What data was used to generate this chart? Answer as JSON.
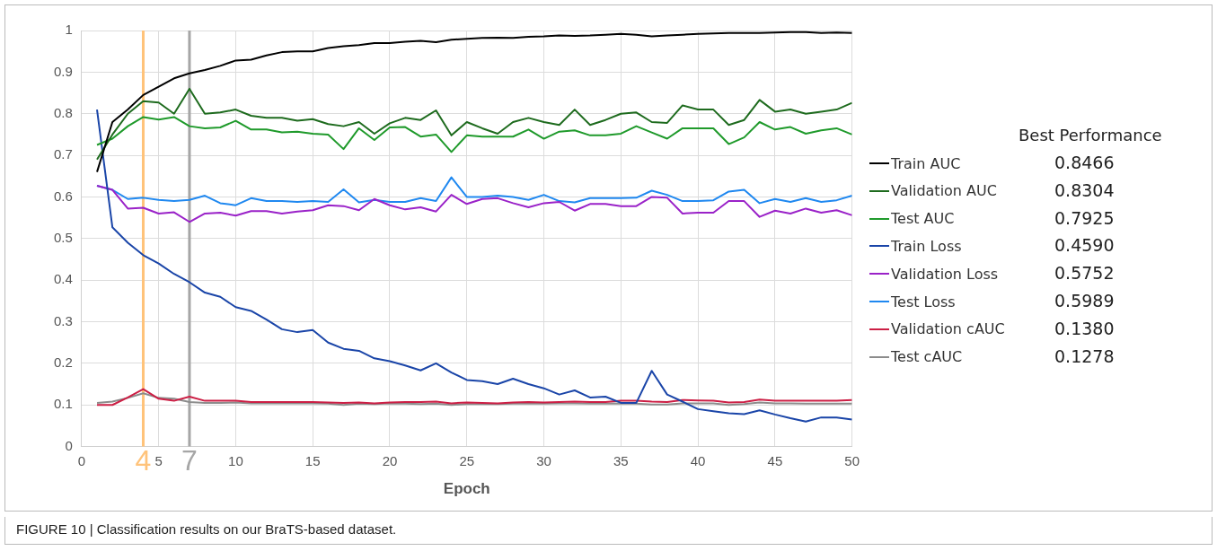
{
  "chart_data": {
    "type": "line",
    "xlabel": "Epoch",
    "legend_title": "Best Performance",
    "legend": "right",
    "grid": true,
    "marker": "none",
    "line_style": "solid",
    "x": [
      1,
      2,
      3,
      4,
      5,
      6,
      7,
      8,
      9,
      10,
      11,
      12,
      13,
      14,
      15,
      16,
      17,
      18,
      19,
      20,
      21,
      22,
      23,
      24,
      25,
      26,
      27,
      28,
      29,
      30,
      31,
      32,
      33,
      34,
      35,
      36,
      37,
      38,
      39,
      40,
      41,
      42,
      43,
      44,
      45,
      46,
      47,
      48,
      49,
      50
    ],
    "xlim": [
      0,
      50
    ],
    "xticks": [
      0,
      5,
      10,
      15,
      20,
      25,
      30,
      35,
      40,
      45,
      50
    ],
    "ylim": [
      0,
      1
    ],
    "yticks": [
      0,
      0.1,
      0.2,
      0.3,
      0.4,
      0.5,
      0.6,
      0.7,
      0.8,
      0.9,
      1
    ],
    "series": [
      {
        "name": "Train AUC",
        "color": "#000000",
        "values": [
          0.66,
          0.78,
          0.81,
          0.845,
          0.865,
          0.885,
          0.897,
          0.905,
          0.915,
          0.928,
          0.93,
          0.94,
          0.948,
          0.95,
          0.95,
          0.958,
          0.962,
          0.965,
          0.97,
          0.97,
          0.973,
          0.975,
          0.972,
          0.978,
          0.98,
          0.982,
          0.983,
          0.982,
          0.985,
          0.986,
          0.988,
          0.987,
          0.988,
          0.99,
          0.992,
          0.99,
          0.986,
          0.988,
          0.99,
          0.992,
          0.993,
          0.994,
          0.994,
          0.994,
          0.995,
          0.996,
          0.996,
          0.994,
          0.995,
          0.994
        ]
      },
      {
        "name": "Validation AUC",
        "color": "#1e6b1e",
        "values": [
          0.69,
          0.75,
          0.8,
          0.83,
          0.827,
          0.8,
          0.86,
          0.8,
          0.803,
          0.81,
          0.795,
          0.79,
          0.79,
          0.783,
          0.787,
          0.775,
          0.77,
          0.78,
          0.752,
          0.777,
          0.79,
          0.785,
          0.808,
          0.748,
          0.78,
          0.765,
          0.752,
          0.78,
          0.79,
          0.78,
          0.773,
          0.81,
          0.773,
          0.785,
          0.8,
          0.803,
          0.78,
          0.778,
          0.82,
          0.81,
          0.81,
          0.773,
          0.785,
          0.833,
          0.805,
          0.81,
          0.8,
          0.805,
          0.81,
          0.826
        ]
      },
      {
        "name": "Test AUC",
        "color": "#1f9a2b",
        "values": [
          0.725,
          0.74,
          0.77,
          0.792,
          0.786,
          0.792,
          0.77,
          0.765,
          0.767,
          0.783,
          0.762,
          0.762,
          0.755,
          0.757,
          0.752,
          0.75,
          0.715,
          0.765,
          0.737,
          0.767,
          0.768,
          0.745,
          0.75,
          0.708,
          0.748,
          0.745,
          0.745,
          0.745,
          0.762,
          0.74,
          0.757,
          0.76,
          0.748,
          0.748,
          0.752,
          0.77,
          0.755,
          0.74,
          0.765,
          0.765,
          0.765,
          0.727,
          0.743,
          0.78,
          0.762,
          0.768,
          0.752,
          0.76,
          0.765,
          0.75
        ]
      },
      {
        "name": "Train Loss",
        "color": "#1a45a8",
        "values": [
          0.81,
          0.527,
          0.49,
          0.46,
          0.44,
          0.415,
          0.395,
          0.37,
          0.36,
          0.335,
          0.326,
          0.305,
          0.282,
          0.275,
          0.28,
          0.25,
          0.235,
          0.23,
          0.212,
          0.205,
          0.195,
          0.183,
          0.2,
          0.178,
          0.16,
          0.157,
          0.15,
          0.163,
          0.15,
          0.14,
          0.125,
          0.135,
          0.118,
          0.12,
          0.105,
          0.105,
          0.182,
          0.125,
          0.108,
          0.09,
          0.085,
          0.08,
          0.078,
          0.087,
          0.077,
          0.068,
          0.06,
          0.07,
          0.07,
          0.065
        ]
      },
      {
        "name": "Validation Loss",
        "color": "#9a22c8",
        "values": [
          0.627,
          0.617,
          0.572,
          0.574,
          0.56,
          0.563,
          0.54,
          0.56,
          0.562,
          0.555,
          0.566,
          0.566,
          0.56,
          0.565,
          0.568,
          0.58,
          0.578,
          0.568,
          0.595,
          0.58,
          0.57,
          0.575,
          0.565,
          0.605,
          0.583,
          0.595,
          0.597,
          0.585,
          0.575,
          0.585,
          0.588,
          0.567,
          0.583,
          0.583,
          0.578,
          0.578,
          0.6,
          0.598,
          0.56,
          0.562,
          0.562,
          0.59,
          0.59,
          0.552,
          0.567,
          0.56,
          0.572,
          0.562,
          0.568,
          0.556
        ]
      },
      {
        "name": "Test Loss",
        "color": "#1f88f0",
        "values": [
          0.627,
          0.617,
          0.595,
          0.598,
          0.593,
          0.59,
          0.593,
          0.603,
          0.585,
          0.58,
          0.597,
          0.59,
          0.59,
          0.588,
          0.59,
          0.588,
          0.618,
          0.587,
          0.593,
          0.588,
          0.588,
          0.597,
          0.59,
          0.647,
          0.6,
          0.6,
          0.603,
          0.6,
          0.593,
          0.605,
          0.59,
          0.587,
          0.597,
          0.597,
          0.597,
          0.598,
          0.615,
          0.605,
          0.59,
          0.59,
          0.592,
          0.613,
          0.617,
          0.585,
          0.595,
          0.588,
          0.597,
          0.588,
          0.592,
          0.603
        ]
      },
      {
        "name": "Validation cAUC",
        "color": "#cc1f45",
        "values": [
          0.1,
          0.1,
          0.118,
          0.138,
          0.115,
          0.11,
          0.12,
          0.11,
          0.11,
          0.11,
          0.107,
          0.107,
          0.107,
          0.107,
          0.107,
          0.106,
          0.105,
          0.106,
          0.104,
          0.106,
          0.107,
          0.107,
          0.108,
          0.104,
          0.106,
          0.105,
          0.104,
          0.106,
          0.107,
          0.106,
          0.107,
          0.108,
          0.107,
          0.107,
          0.11,
          0.11,
          0.108,
          0.107,
          0.112,
          0.111,
          0.11,
          0.106,
          0.107,
          0.113,
          0.11,
          0.11,
          0.11,
          0.11,
          0.11,
          0.112
        ]
      },
      {
        "name": "Test cAUC",
        "color": "#8c8c8c",
        "values": [
          0.105,
          0.108,
          0.117,
          0.128,
          0.117,
          0.115,
          0.107,
          0.105,
          0.105,
          0.106,
          0.104,
          0.104,
          0.104,
          0.104,
          0.104,
          0.103,
          0.1,
          0.103,
          0.102,
          0.104,
          0.103,
          0.102,
          0.103,
          0.1,
          0.102,
          0.102,
          0.102,
          0.103,
          0.103,
          0.103,
          0.104,
          0.104,
          0.103,
          0.103,
          0.104,
          0.103,
          0.101,
          0.101,
          0.104,
          0.104,
          0.104,
          0.1,
          0.102,
          0.106,
          0.104,
          0.104,
          0.103,
          0.103,
          0.103,
          0.103
        ]
      }
    ],
    "ref_lines": [
      {
        "axis": "x",
        "value": 4,
        "label": "4",
        "color": "#ffc37a"
      },
      {
        "axis": "x",
        "value": 7,
        "label": "7",
        "color": "#a6a6a6"
      }
    ],
    "annotations": [
      "FIGURE 10 | Classification results on our BraTS-based dataset.",
      "0.8466",
      "0.8304",
      "0.7925",
      "0.4590",
      "0.5752",
      "0.5989",
      "0.1380",
      "0.1278"
    ]
  }
}
